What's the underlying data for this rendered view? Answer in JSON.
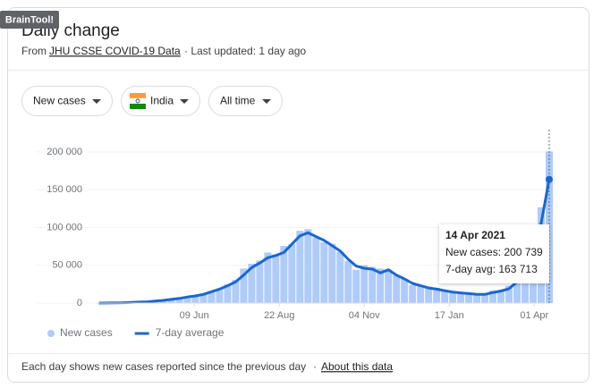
{
  "badge": "BrainTool!",
  "header": {
    "title": "Daily change",
    "source_prefix": "From",
    "source_link": "JHU CSSE COVID-19 Data",
    "updated": "· Last updated: 1 day ago"
  },
  "controls": [
    "New cases",
    "India",
    "All time"
  ],
  "chart_data": {
    "type": "bar",
    "x": [
      "2020-03-18",
      "2020-03-25",
      "2020-04-01",
      "2020-04-08",
      "2020-04-15",
      "2020-04-22",
      "2020-04-29",
      "2020-05-06",
      "2020-05-13",
      "2020-05-20",
      "2020-05-27",
      "2020-06-03",
      "2020-06-10",
      "2020-06-17",
      "2020-06-24",
      "2020-07-01",
      "2020-07-08",
      "2020-07-15",
      "2020-07-22",
      "2020-07-29",
      "2020-08-05",
      "2020-08-12",
      "2020-08-19",
      "2020-08-26",
      "2020-09-02",
      "2020-09-09",
      "2020-09-16",
      "2020-09-23",
      "2020-09-30",
      "2020-10-07",
      "2020-10-14",
      "2020-10-21",
      "2020-10-28",
      "2020-11-04",
      "2020-11-11",
      "2020-11-18",
      "2020-11-25",
      "2020-12-02",
      "2020-12-09",
      "2020-12-16",
      "2020-12-23",
      "2020-12-30",
      "2021-01-06",
      "2021-01-13",
      "2021-01-20",
      "2021-01-27",
      "2021-02-03",
      "2021-02-10",
      "2021-02-17",
      "2021-02-24",
      "2021-03-03",
      "2021-03-10",
      "2021-03-17",
      "2021-03-24",
      "2021-03-31",
      "2021-04-07",
      "2021-04-14"
    ],
    "series": [
      {
        "name": "New cases",
        "type": "bar",
        "color": "#aecbfa",
        "values": [
          28,
          90,
          420,
          550,
          1050,
          1400,
          1750,
          3500,
          3700,
          5600,
          6500,
          8900,
          10000,
          12800,
          16000,
          19100,
          24900,
          31000,
          45700,
          52100,
          56300,
          66900,
          64500,
          75700,
          78300,
          95700,
          97900,
          86500,
          80500,
          78500,
          67700,
          55800,
          44000,
          50200,
          47900,
          45600,
          44500,
          36600,
          32000,
          24000,
          23900,
          21800,
          20300,
          15900,
          15200,
          12700,
          12900,
          11000,
          11600,
          16700,
          17400,
          22800,
          35900,
          53500,
          72300,
          126800,
          200739
        ]
      },
      {
        "name": "7-day average",
        "type": "line",
        "color": "#1967d2",
        "values": [
          20,
          80,
          300,
          500,
          900,
          1300,
          1600,
          2700,
          3500,
          4800,
          6200,
          8000,
          9500,
          11500,
          15000,
          18500,
          23000,
          28000,
          37000,
          47000,
          53000,
          60000,
          63000,
          67000,
          78000,
          89000,
          93000,
          88000,
          83000,
          76000,
          69000,
          58000,
          49000,
          46000,
          45000,
          40000,
          44000,
          37000,
          32000,
          26000,
          23000,
          20000,
          18500,
          16500,
          14500,
          13500,
          12500,
          11500,
          11500,
          14000,
          16000,
          19000,
          28000,
          46000,
          65000,
          106000,
          163713
        ]
      }
    ],
    "xlim": [
      "2020-03-16",
      "2021-04-14"
    ],
    "xticks": [
      {
        "value": "2020-06-09",
        "label": "09 Jun"
      },
      {
        "value": "2020-08-22",
        "label": "22 Aug"
      },
      {
        "value": "2020-11-04",
        "label": "04 Nov"
      },
      {
        "value": "2021-01-17",
        "label": "17 Jan"
      },
      {
        "value": "2021-04-01",
        "label": "01 Apr"
      }
    ],
    "ylim": [
      0,
      200000
    ],
    "yticks": [
      0,
      {
        "value": 50000,
        "label": "50 000"
      },
      {
        "value": 100000,
        "label": "100 000"
      },
      {
        "value": 150000,
        "label": "150 000"
      },
      {
        "value": 200000,
        "label": "200 000"
      }
    ],
    "tooltip": {
      "title": "14 Apr 2021",
      "lines": [
        "New cases: 200 739",
        "7-day avg: 163 713"
      ]
    }
  },
  "footer": {
    "note": "Each day shows new cases reported since the previous day",
    "separator": "·",
    "link": "About this data"
  }
}
